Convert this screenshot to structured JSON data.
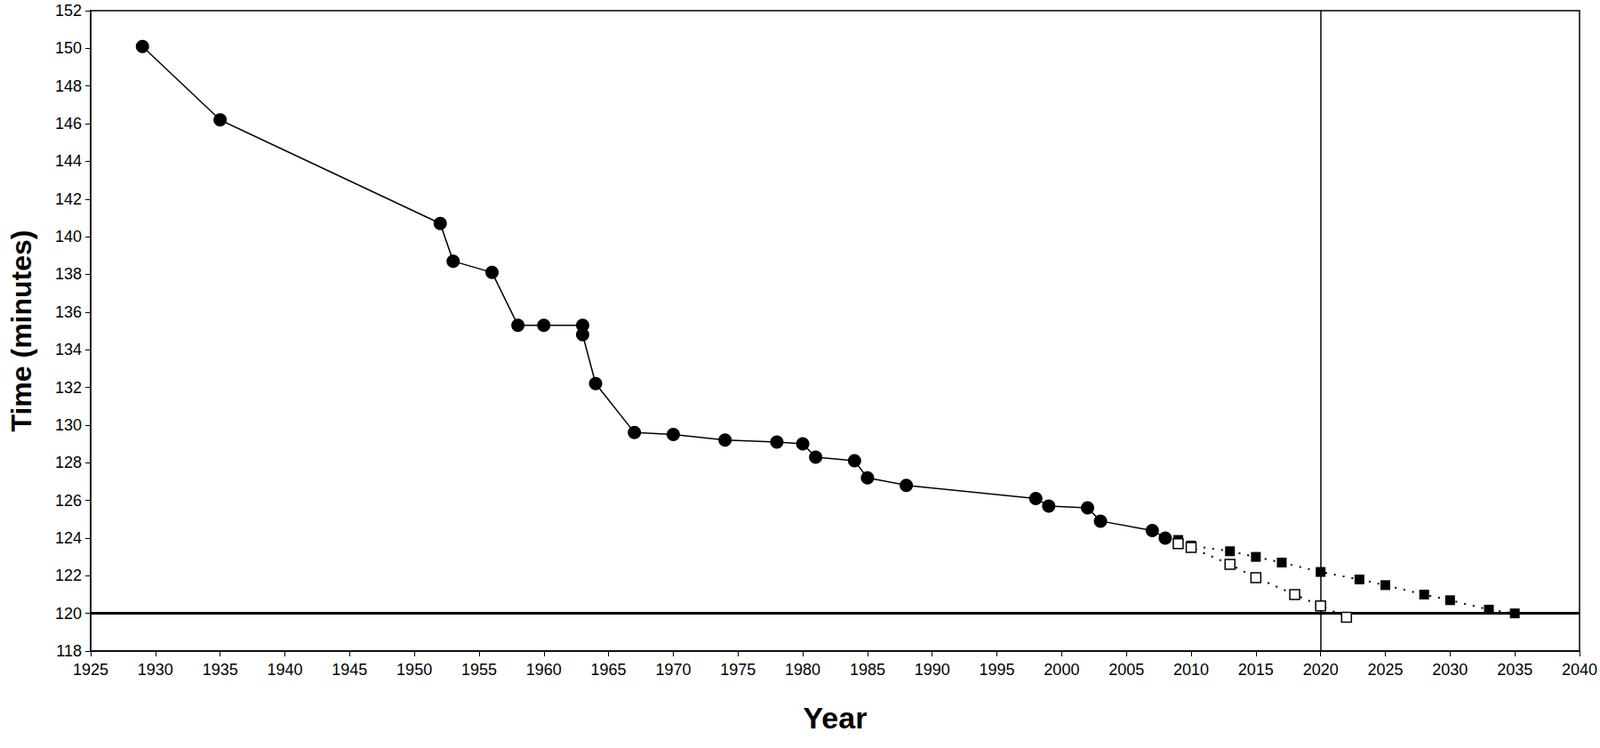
{
  "chart_data": {
    "type": "line",
    "x_label": "Year",
    "y_label": "Time (minutes)",
    "xlim": [
      1925,
      2040
    ],
    "xticks": [
      1925,
      1930,
      1935,
      1940,
      1945,
      1950,
      1955,
      1960,
      1965,
      1970,
      1975,
      1980,
      1985,
      1990,
      1995,
      2000,
      2005,
      2010,
      2015,
      2020,
      2025,
      2030,
      2035,
      2040
    ],
    "ylim": [
      118,
      152
    ],
    "yticks": [
      118,
      120,
      122,
      124,
      126,
      128,
      130,
      132,
      134,
      136,
      138,
      140,
      142,
      144,
      146,
      148,
      150,
      152
    ],
    "grid": false,
    "vlines": [
      2020
    ],
    "hlines": [
      120
    ],
    "series": [
      {
        "color": "#000000",
        "marker": "circle",
        "line_style": "solid",
        "x": [
          1929,
          1935,
          1952,
          1953,
          1956,
          1958,
          1960,
          1963,
          1963,
          1964,
          1967,
          1970,
          1974,
          1978,
          1980,
          1981,
          1984,
          1985,
          1988,
          1998,
          1999,
          2002,
          2003,
          2007,
          2008
        ],
        "values": [
          150.1,
          146.2,
          140.7,
          138.7,
          138.1,
          135.3,
          135.3,
          135.3,
          134.8,
          132.2,
          129.6,
          129.5,
          129.2,
          129.1,
          129.0,
          128.3,
          128.1,
          127.2,
          126.8,
          126.1,
          125.7,
          125.6,
          124.9,
          124.4,
          124.0
        ]
      },
      {
        "color": "#000000",
        "marker": "square",
        "line_style": "dotted",
        "x": [
          2009,
          2010,
          2013,
          2015,
          2017,
          2020,
          2023,
          2025,
          2028,
          2030,
          2033,
          2035
        ],
        "values": [
          123.9,
          123.6,
          123.3,
          123.0,
          122.7,
          122.2,
          121.8,
          121.5,
          121.0,
          120.7,
          120.2,
          120.0
        ]
      },
      {
        "color": "#000000",
        "marker": "square_open",
        "line_style": "dotted",
        "x": [
          2009,
          2010,
          2013,
          2015,
          2018,
          2020,
          2022
        ],
        "values": [
          123.7,
          123.5,
          122.6,
          121.9,
          121.0,
          120.4,
          119.8
        ]
      }
    ]
  }
}
